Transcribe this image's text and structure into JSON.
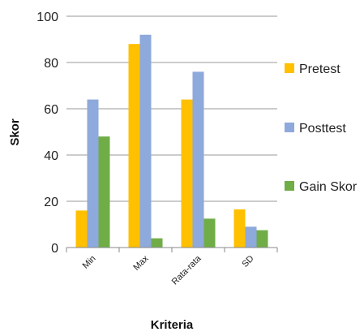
{
  "chart_data": {
    "type": "bar",
    "categories": [
      "Min",
      "Max",
      "Rata-rata",
      "SD"
    ],
    "series": [
      {
        "name": "Pretest",
        "values": [
          16,
          88,
          64,
          16.5
        ],
        "color": "#FFC000"
      },
      {
        "name": "Posttest",
        "values": [
          64,
          92,
          76,
          9
        ],
        "color": "#8EA9DB"
      },
      {
        "name": "Gain Skor",
        "values": [
          48,
          4,
          12.5,
          7.5
        ],
        "color": "#70AD47"
      }
    ],
    "title": "",
    "xlabel": "Kriteria",
    "ylabel": "Skor",
    "ylim": [
      0,
      100
    ],
    "yticks": [
      "0",
      "20",
      "40",
      "60",
      "80",
      "100"
    ],
    "grid": true,
    "legend": "right"
  }
}
